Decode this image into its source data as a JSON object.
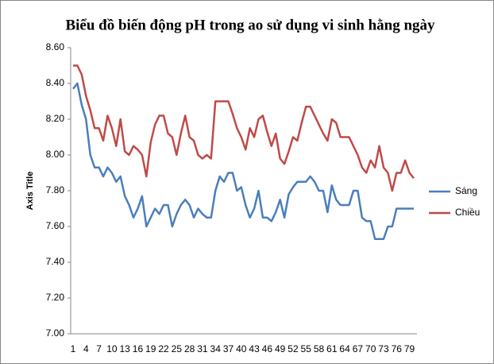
{
  "chart_data": {
    "type": "line",
    "title": "Biểu đồ biến động pH trong ao sử dụng vi sinh hằng ngày",
    "y_axis_label": "Axis Title",
    "categories": [
      1,
      null,
      null,
      4,
      null,
      null,
      7,
      null,
      null,
      10,
      null,
      null,
      13,
      null,
      null,
      16,
      null,
      null,
      19,
      null,
      null,
      22,
      null,
      null,
      25,
      null,
      null,
      28,
      null,
      null,
      31,
      null,
      null,
      34,
      null,
      null,
      37,
      null,
      null,
      40,
      null,
      null,
      43,
      null,
      null,
      46,
      null,
      null,
      49,
      null,
      null,
      52,
      null,
      null,
      55,
      null,
      null,
      58,
      null,
      null,
      61,
      null,
      null,
      64,
      null,
      null,
      67,
      null,
      null,
      70,
      null,
      null,
      73,
      null,
      null,
      76,
      null,
      null,
      79,
      null
    ],
    "series": [
      {
        "name": "Sáng",
        "color": "#4a7ebb",
        "values": [
          8.37,
          8.4,
          8.28,
          8.2,
          8.0,
          7.93,
          7.93,
          7.88,
          7.93,
          7.9,
          7.85,
          7.88,
          7.77,
          7.72,
          7.65,
          7.7,
          7.77,
          7.6,
          7.65,
          7.7,
          7.67,
          7.72,
          7.72,
          7.6,
          7.67,
          7.72,
          7.75,
          7.72,
          7.65,
          7.7,
          7.67,
          7.65,
          7.65,
          7.8,
          7.88,
          7.85,
          7.9,
          7.9,
          7.8,
          7.82,
          7.72,
          7.65,
          7.7,
          7.8,
          7.65,
          7.65,
          7.63,
          7.68,
          7.75,
          7.65,
          7.78,
          7.82,
          7.85,
          7.85,
          7.85,
          7.88,
          7.85,
          7.8,
          7.8,
          7.68,
          7.83,
          7.75,
          7.72,
          7.72,
          7.72,
          7.8,
          7.8,
          7.65,
          7.63,
          7.63,
          7.53,
          7.53,
          7.53,
          7.6,
          7.6,
          7.7,
          7.7,
          7.7,
          7.7,
          7.7
        ]
      },
      {
        "name": "Chiều",
        "color": "#be4b48",
        "values": [
          8.5,
          8.5,
          8.45,
          8.33,
          8.25,
          8.15,
          8.15,
          8.08,
          8.22,
          8.15,
          8.05,
          8.2,
          8.02,
          8.0,
          8.05,
          8.03,
          8.0,
          7.88,
          8.07,
          8.17,
          8.22,
          8.22,
          8.12,
          8.1,
          8.0,
          8.12,
          8.22,
          8.1,
          8.08,
          8.0,
          7.98,
          8.0,
          7.98,
          8.3,
          8.3,
          8.3,
          8.3,
          8.23,
          8.15,
          8.1,
          8.03,
          8.15,
          8.1,
          8.2,
          8.22,
          8.13,
          8.05,
          8.12,
          7.98,
          7.95,
          8.02,
          8.1,
          8.08,
          8.18,
          8.27,
          8.27,
          8.22,
          8.17,
          8.12,
          8.08,
          8.2,
          8.18,
          8.1,
          8.1,
          8.1,
          8.05,
          8.0,
          7.93,
          7.9,
          7.97,
          7.93,
          8.05,
          7.93,
          7.9,
          7.8,
          7.9,
          7.9,
          7.97,
          7.9,
          7.87
        ]
      }
    ],
    "ylim": [
      7.0,
      8.6
    ],
    "yticks": [
      {
        "value": 7.0,
        "label": "7.00"
      },
      {
        "value": 7.2,
        "label": "7.20"
      },
      {
        "value": 7.4,
        "label": "7.40"
      },
      {
        "value": 7.6,
        "label": "7.60"
      },
      {
        "value": 7.8,
        "label": "7.80"
      },
      {
        "value": 8.0,
        "label": "8.00"
      },
      {
        "value": 8.2,
        "label": "8.20"
      },
      {
        "value": 8.4,
        "label": "8.40"
      },
      {
        "value": 8.6,
        "label": "8.60"
      }
    ],
    "grid": false,
    "legend": "right"
  }
}
